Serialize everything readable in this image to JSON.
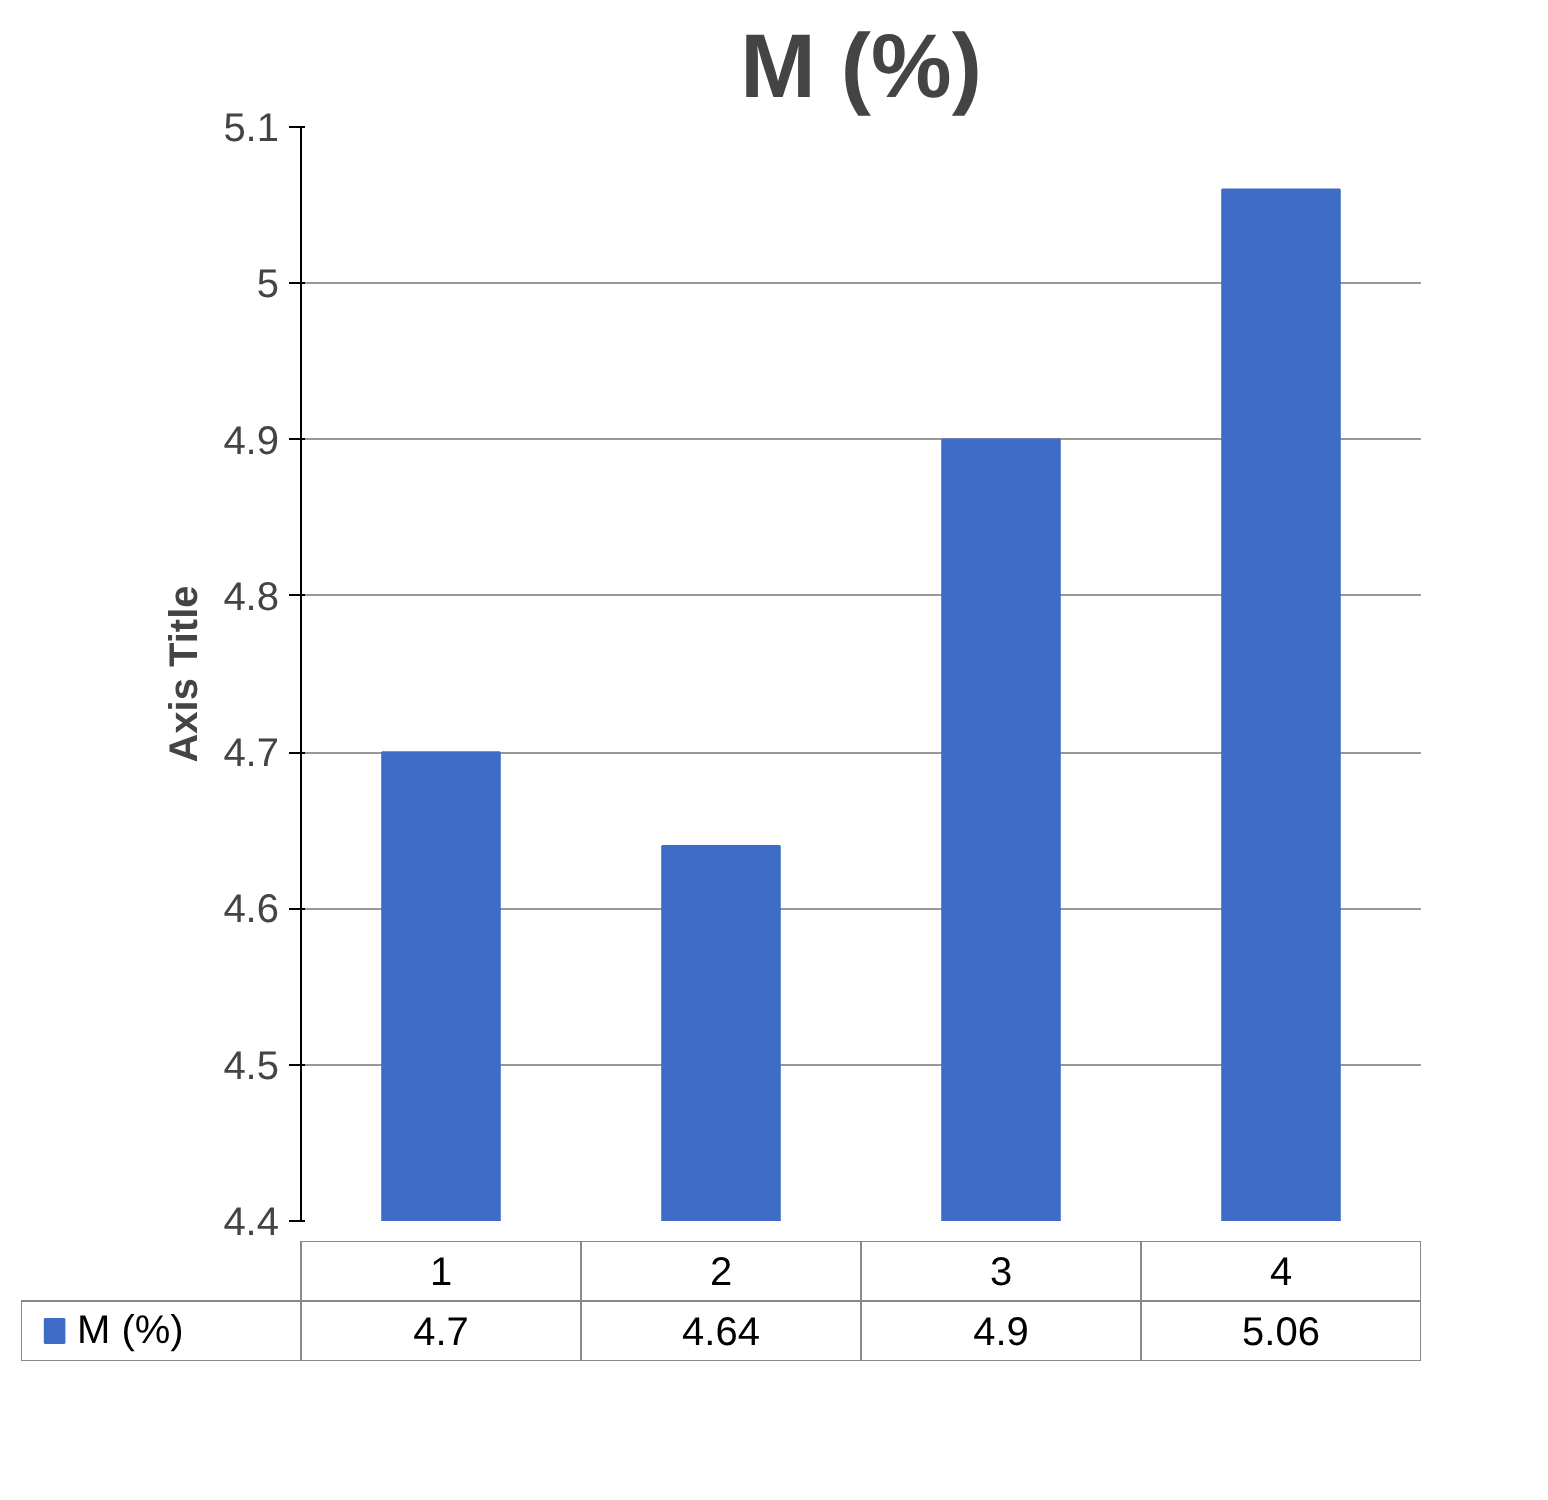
{
  "chart_data": {
    "type": "bar",
    "title": "M (%)",
    "ylabel": "Axis Title",
    "categories": [
      "1",
      "2",
      "3",
      "4"
    ],
    "series": [
      {
        "name": "M (%)",
        "color": "#3f6cc7",
        "values": [
          4.7,
          4.64,
          4.9,
          5.06
        ]
      }
    ],
    "ylim": [
      4.4,
      5.1
    ],
    "yticks": [
      4.4,
      4.5,
      4.6,
      4.7,
      4.8,
      4.9,
      5,
      5.1
    ],
    "grid": "y",
    "legend": "bottom",
    "data_labels": true
  }
}
